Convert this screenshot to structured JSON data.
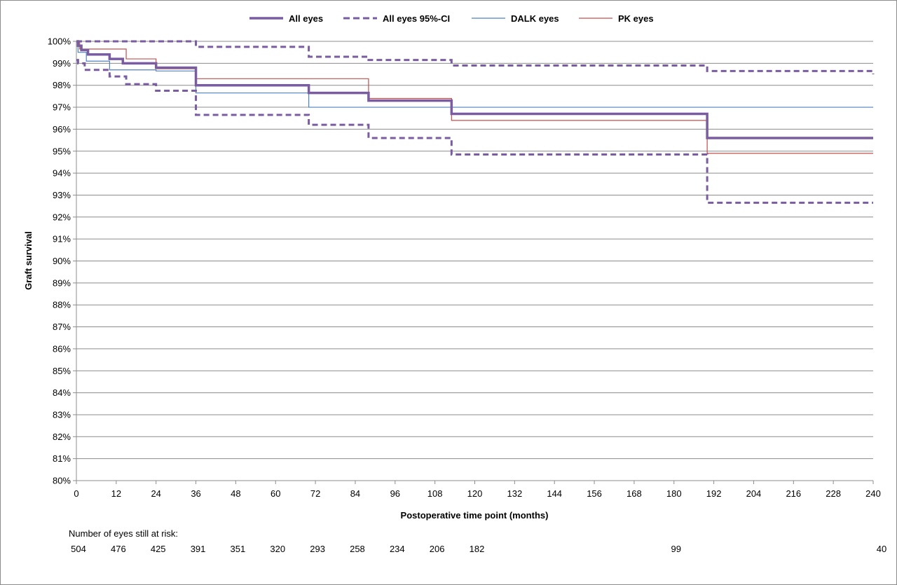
{
  "chart_data": {
    "type": "line",
    "subtype": "kaplan-meier step",
    "xlabel": "Postoperative time point (months)",
    "ylabel": "Graft survival",
    "xlim": [
      0,
      240
    ],
    "ylim": [
      80,
      100
    ],
    "x_ticks": [
      0,
      12,
      24,
      36,
      48,
      60,
      72,
      84,
      96,
      108,
      120,
      132,
      144,
      156,
      168,
      180,
      192,
      204,
      216,
      228,
      240
    ],
    "y_ticks": [
      80,
      81,
      82,
      83,
      84,
      85,
      86,
      87,
      88,
      89,
      90,
      91,
      92,
      93,
      94,
      95,
      96,
      97,
      98,
      99,
      100
    ],
    "y_tick_labels": [
      "80%",
      "81%",
      "82%",
      "83%",
      "84%",
      "85%",
      "86%",
      "87%",
      "88%",
      "89%",
      "90%",
      "91%",
      "92%",
      "93%",
      "94%",
      "95%",
      "96%",
      "97%",
      "98%",
      "99%",
      "100%"
    ],
    "grid": "horizontal",
    "legend_position": "top",
    "series": [
      {
        "name": "All eyes",
        "color": "#7a5ca0",
        "style": "solid-thick",
        "x": [
          0,
          0.5,
          1.5,
          3.5,
          10,
          14,
          24,
          36,
          70,
          88,
          113,
          190,
          240
        ],
        "y": [
          100,
          99.8,
          99.6,
          99.4,
          99.2,
          99.0,
          98.8,
          98.0,
          97.65,
          97.3,
          96.7,
          95.6,
          95.6
        ]
      },
      {
        "name": "All eyes 95%-CI",
        "color": "#7a5ca0",
        "style": "dashed",
        "x": [
          0,
          12,
          36,
          70,
          88,
          113,
          190,
          240
        ],
        "y": [
          100,
          100,
          99.75,
          99.3,
          99.15,
          98.9,
          98.65,
          98.5
        ]
      },
      {
        "name": "",
        "legend_group": "All eyes 95%-CI",
        "color": "#7a5ca0",
        "style": "dashed",
        "x": [
          0,
          0.5,
          2.5,
          10,
          15,
          24,
          36,
          70,
          88,
          113,
          190,
          240
        ],
        "y": [
          99.15,
          99.0,
          98.7,
          98.4,
          98.05,
          97.75,
          96.65,
          96.2,
          95.6,
          94.85,
          92.65,
          92.65
        ]
      },
      {
        "name": "DALK eyes",
        "color": "#4f81bd",
        "style": "solid-thin",
        "x": [
          0,
          0.5,
          3,
          10,
          24,
          36,
          70,
          240
        ],
        "y": [
          100,
          99.5,
          99.1,
          98.7,
          98.65,
          97.65,
          97.0,
          97.0
        ]
      },
      {
        "name": "PK eyes",
        "color": "#c0504d",
        "style": "solid-thin",
        "x": [
          0,
          1,
          15,
          24,
          36,
          88,
          113,
          190,
          240
        ],
        "y": [
          100,
          99.65,
          99.2,
          98.75,
          98.3,
          97.4,
          96.4,
          94.9,
          94.9
        ]
      }
    ],
    "at_risk": {
      "title": "Number  of eyes still at risk:",
      "x": [
        0,
        12,
        24,
        36,
        48,
        60,
        72,
        84,
        96,
        108,
        120,
        180,
        240
      ],
      "counts": [
        "504",
        "476",
        "425",
        "391",
        "351",
        "320",
        "293",
        "258",
        "234",
        "206",
        "182",
        "99",
        "40"
      ]
    }
  }
}
